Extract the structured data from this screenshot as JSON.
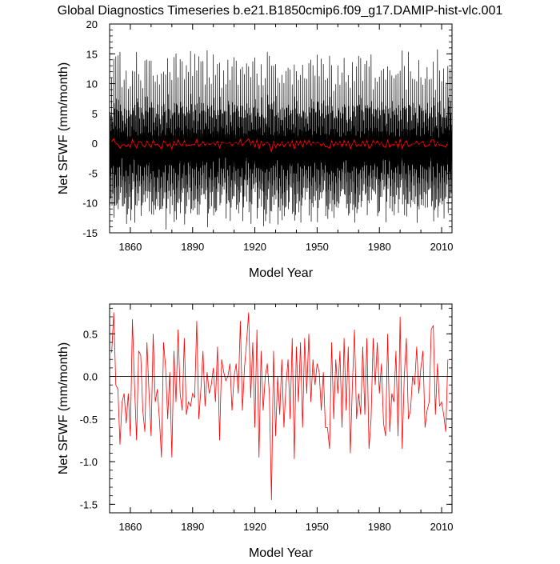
{
  "title": "Global Diagnostics Timeseries b.e21.B1850cmip6.f09_g17.DAMIP-hist-vlc.001",
  "colors": {
    "monthly_line": "#000000",
    "annual_line": "#ff0000",
    "zero_line": "#000000"
  },
  "chart_data": [
    {
      "type": "line",
      "title": "",
      "xlabel": "Model Year",
      "ylabel": "Net SFWF (mm/month)",
      "xlim": [
        1850,
        2015
      ],
      "ylim": [
        -15,
        20
      ],
      "xticks": [
        1860,
        1890,
        1920,
        1950,
        1980,
        2010
      ],
      "xtick_labels": [
        "1860",
        "1890",
        "1920",
        "1950",
        "1980",
        "2010"
      ],
      "yticks": [
        -15,
        -10,
        -5,
        0,
        5,
        10,
        15,
        20
      ],
      "ytick_labels": [
        "-15",
        "-10",
        "-5",
        "0",
        "5",
        "10",
        "15",
        "20"
      ],
      "grid": false,
      "series": [
        {
          "color": "#000000",
          "resolution": "monthly",
          "seasonal_cycle_amplitude_range": [
            9.5,
            15
          ],
          "seasonal_minimum_range": [
            -13.5,
            -8
          ],
          "x_start": 1850,
          "x_end": 2015
        },
        {
          "color": "#ff0000",
          "resolution": "annual",
          "x_start": 1850,
          "x_end": 2015
        }
      ],
      "reference_line": 0
    },
    {
      "type": "line",
      "title": "",
      "xlabel": "Model Year",
      "ylabel": "Net SFWF (mm/month)",
      "xlim": [
        1850,
        2015
      ],
      "ylim": [
        -1.6,
        0.85
      ],
      "xticks": [
        1860,
        1890,
        1920,
        1950,
        1980,
        2010
      ],
      "xtick_labels": [
        "1860",
        "1890",
        "1920",
        "1950",
        "1980",
        "2010"
      ],
      "yticks": [
        -1.5,
        -1.0,
        -0.5,
        0.0,
        0.5
      ],
      "ytick_labels": [
        "-1.5",
        "-1.0",
        "-0.5",
        "0.0",
        "0.5"
      ],
      "grid": false,
      "reference_line": 0,
      "series": [
        {
          "color": "#ff0000",
          "x_start": 1851,
          "values": [
            0.28,
            0.75,
            -0.1,
            -0.15,
            -0.8,
            -0.3,
            -0.2,
            -0.55,
            -0.2,
            -0.7,
            0.67,
            -0.1,
            -0.75,
            0.3,
            0.25,
            -0.4,
            -0.65,
            0.4,
            -0.2,
            -0.7,
            0.5,
            -0.3,
            -0.15,
            -0.5,
            -0.95,
            0.4,
            0.1,
            -0.5,
            0.05,
            -0.95,
            0.3,
            -0.3,
            0.55,
            -0.2,
            -0.4,
            0.45,
            -0.45,
            -0.3,
            -0.35,
            -0.2,
            -0.25,
            0.65,
            -0.5,
            -0.15,
            0.3,
            -0.35,
            0.05,
            -0.2,
            -0.1,
            0.1,
            -0.3,
            0.35,
            -0.75,
            0.2,
            0.05,
            -0.05,
            0.0,
            0.15,
            -0.4,
            0.0,
            0.15,
            -0.2,
            0.65,
            -0.4,
            0.1,
            0.4,
            0.75,
            -0.25,
            0.4,
            -0.6,
            0.55,
            -0.95,
            0.3,
            -0.4,
            0.0,
            0.15,
            -0.2,
            -1.45,
            0.3,
            -0.7,
            0.0,
            -0.45,
            0.2,
            -0.6,
            -0.1,
            0.2,
            -0.5,
            0.45,
            -0.97,
            0.35,
            -0.3,
            0.4,
            -0.6,
            0.45,
            -0.2,
            0.5,
            -0.3,
            0.2,
            -0.1,
            0.15,
            0.05,
            -0.4,
            0.05,
            -0.6,
            -0.6,
            -0.85,
            0.4,
            -0.5,
            0.2,
            -0.2,
            0.3,
            -0.6,
            0.45,
            -0.4,
            0.35,
            -0.9,
            -0.1,
            0.55,
            -0.5,
            -0.2,
            -0.45,
            0.35,
            -0.45,
            0.45,
            -0.85,
            -0.5,
            0.45,
            -0.1,
            0.4,
            -0.2,
            0.15,
            -0.55,
            -0.7,
            0.5,
            -0.65,
            -0.2,
            -0.3,
            0.3,
            -0.7,
            0.7,
            -0.85,
            0.0,
            0.45,
            -0.5,
            -0.4,
            0.0,
            -0.1,
            0.35,
            -0.2,
            0.1,
            0.3,
            -0.6,
            -0.4,
            -0.3,
            0.55,
            0.6,
            -0.45,
            0.15,
            -0.35,
            -0.3,
            -0.45,
            -0.65,
            0.2
          ]
        }
      ]
    }
  ]
}
